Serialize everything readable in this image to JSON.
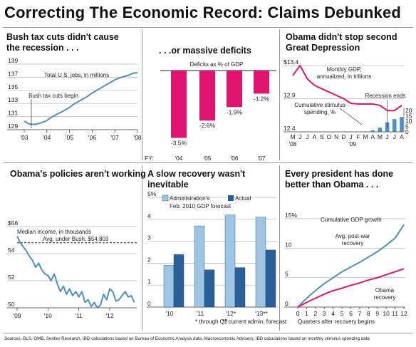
{
  "page": {
    "title": "Correcting The Economic Record: Claims Debunked",
    "sources": "Sources: BLS, OMB, Sentier Research, IBD calculations based on Bureau of Economic Analysis data, Macroeconomic Advisers; IBD calculations based on monthly stimulus spending data",
    "colors": {
      "magenta": "#e0156f",
      "blue": "#4f8fc6",
      "light_blue": "#9cc6e4",
      "dark_blue": "#2a5f99"
    }
  },
  "chart_data": [
    {
      "type": "line",
      "title": "Bush tax cuts didn't cause the recession . . .",
      "ylabel": "Total U.S. jobs, in millions",
      "annotation": "Bush tax cuts begin",
      "x_ticks": [
        "'03",
        "'04",
        "'05",
        "'06",
        "'07",
        "'08"
      ],
      "y_ticks": [
        129,
        131,
        133,
        135,
        137,
        139
      ],
      "ylim": [
        129,
        139
      ],
      "xlim": [
        2003.0,
        2008.0
      ],
      "series": [
        {
          "color": "#4f8fc6",
          "x": [
            2003.0,
            2003.2,
            2003.4,
            2003.6,
            2003.8,
            2004.0,
            2004.2,
            2004.4,
            2004.6,
            2004.8,
            2005.0,
            2005.2,
            2005.4,
            2005.6,
            2005.8,
            2006.0,
            2006.2,
            2006.4,
            2006.6,
            2006.8,
            2007.0,
            2007.2,
            2007.4,
            2007.6,
            2007.8,
            2008.0
          ],
          "y": [
            130.3,
            129.9,
            129.8,
            129.9,
            130.1,
            130.4,
            130.9,
            131.3,
            131.6,
            132.0,
            132.4,
            132.9,
            133.3,
            133.7,
            134.1,
            134.6,
            135.0,
            135.4,
            135.8,
            136.2,
            136.6,
            136.9,
            137.1,
            137.3,
            137.6,
            137.7
          ]
        }
      ]
    },
    {
      "type": "bar",
      "title": ". . .or massive deficits",
      "ylabel": "Deficits as % of GDP",
      "x_prefix": "FY:",
      "categories": [
        "'04",
        "'05",
        "'06",
        "'07"
      ],
      "values": [
        -3.5,
        -2.6,
        -1.9,
        -1.2
      ],
      "value_labels": [
        "-3.5%",
        "-2.6%",
        "-1.9%",
        "-1.2%"
      ],
      "ylim": [
        -4,
        0
      ],
      "color": "#e0156f"
    },
    {
      "type": "line",
      "title": "Obama didn't stop second Great Depression",
      "series": [
        {
          "name": "Monthly GDP, annualized, in trillions",
          "color": "#e0156f",
          "x": [
            "M",
            "J",
            "J",
            "A",
            "S",
            "O",
            "N",
            "D",
            "J",
            "F",
            "M",
            "A",
            "M",
            "J",
            "J",
            "A"
          ],
          "y": [
            13.25,
            13.4,
            13.2,
            13.1,
            13.05,
            13.0,
            12.95,
            12.9,
            12.83,
            12.82,
            12.82,
            12.82,
            12.8,
            12.72,
            12.72,
            12.8
          ]
        },
        {
          "name": "Cumulative stimulus spending, %",
          "type": "bar",
          "color": "#4f8fc6",
          "x": [
            "M",
            "A",
            "M",
            "J",
            "J",
            "A"
          ],
          "y": [
            0.5,
            1.5,
            4,
            9,
            12,
            14
          ]
        }
      ],
      "left_y_ticks": [
        "$13.4",
        "12.9",
        "12.4"
      ],
      "right_y_ticks": [
        20,
        15,
        10,
        5,
        0
      ],
      "x_ticks": [
        "M",
        "J",
        "J",
        "A",
        "S",
        "O",
        "N",
        "D",
        "J",
        "F",
        "M",
        "A",
        "M",
        "J",
        "J",
        "A"
      ],
      "year_labels": [
        "'08",
        "'09"
      ],
      "annotations": [
        "Recession ends"
      ]
    },
    {
      "type": "line",
      "title": "Obama's policies aren't working",
      "ylabel": "Median income, in thousands",
      "reference": {
        "label": "Avg. under Bush: $54,803",
        "value": 54.8
      },
      "y_ticks": [
        "$56",
        "54",
        "52",
        "50"
      ],
      "ylim": [
        50,
        56
      ],
      "x_ticks": [
        "'09",
        "'10",
        "'11",
        "'12"
      ],
      "xlim": [
        2009.0,
        2012.83
      ],
      "series": [
        {
          "color": "#4f8fc6",
          "x": [
            2009.0,
            2009.1,
            2009.2,
            2009.3,
            2009.4,
            2009.5,
            2009.6,
            2009.7,
            2009.8,
            2009.9,
            2010.0,
            2010.1,
            2010.2,
            2010.3,
            2010.4,
            2010.5,
            2010.6,
            2010.7,
            2010.8,
            2010.9,
            2011.0,
            2011.1,
            2011.2,
            2011.3,
            2011.4,
            2011.5,
            2011.6,
            2011.7,
            2011.8,
            2011.9,
            2012.0,
            2012.1,
            2012.2,
            2012.3,
            2012.4,
            2012.5,
            2012.6,
            2012.7,
            2012.8
          ],
          "y": [
            55.3,
            54.8,
            54.5,
            54.2,
            53.8,
            53.5,
            53.0,
            53.3,
            52.8,
            52.5,
            52.4,
            52.0,
            52.5,
            51.8,
            51.2,
            51.6,
            51.0,
            51.4,
            50.9,
            51.2,
            50.8,
            51.2,
            50.4,
            50.6,
            50.1,
            50.4,
            50.0,
            50.2,
            51.0,
            50.6,
            51.4,
            51.2,
            50.5,
            50.6,
            50.9,
            51.2,
            50.8,
            50.9,
            50.4
          ]
        }
      ]
    },
    {
      "type": "bar",
      "title": "A slow recovery wasn't inevitable",
      "legend": [
        "Administration's Feb. 2010 GDP forecast",
        "Actual"
      ],
      "categories": [
        "'10",
        "'11",
        "'12*",
        "'13**"
      ],
      "series": [
        {
          "name": "Administration's Feb. 2010 GDP forecast",
          "color": "#9cc6e4",
          "values": [
            1.9,
            3.7,
            4.2,
            4.1
          ]
        },
        {
          "name": "Actual",
          "color": "#2a5f99",
          "values": [
            2.4,
            1.7,
            1.8,
            2.6
          ]
        }
      ],
      "y_ticks": [
        "5%",
        "4",
        "3",
        "2",
        "1",
        "0"
      ],
      "ylim": [
        0,
        5
      ],
      "footnotes": [
        "* through Q2",
        "** current admin. forecast"
      ]
    },
    {
      "type": "line",
      "title": "Every president has done better than Obama . . .",
      "ylabel": "Cumulative GDP growth",
      "xlabel": "Quarters after recovery begins",
      "x_ticks": [
        0,
        1,
        2,
        3,
        4,
        5,
        6,
        7,
        8,
        9,
        10,
        11,
        12
      ],
      "y_ticks": [
        "15%",
        "10",
        "5",
        "0"
      ],
      "ylim": [
        0,
        15
      ],
      "series": [
        {
          "name": "Avg. post-war recovery",
          "color": "#4f8fc6",
          "x": [
            0,
            1,
            2,
            3,
            4,
            5,
            6,
            7,
            8,
            9,
            10,
            11,
            12
          ],
          "y": [
            0,
            1.5,
            2.8,
            4.0,
            5.0,
            6.0,
            6.8,
            7.6,
            8.5,
            9.4,
            10.5,
            11.7,
            14.0
          ]
        },
        {
          "name": "Obama recovery",
          "color": "#e0156f",
          "x": [
            0,
            1,
            2,
            3,
            4,
            5,
            6,
            7,
            8,
            9,
            10,
            11,
            12
          ],
          "y": [
            0,
            0.8,
            1.5,
            2.2,
            2.8,
            3.2,
            3.7,
            4.1,
            4.6,
            5.0,
            5.5,
            6.0,
            6.5
          ]
        }
      ]
    }
  ]
}
